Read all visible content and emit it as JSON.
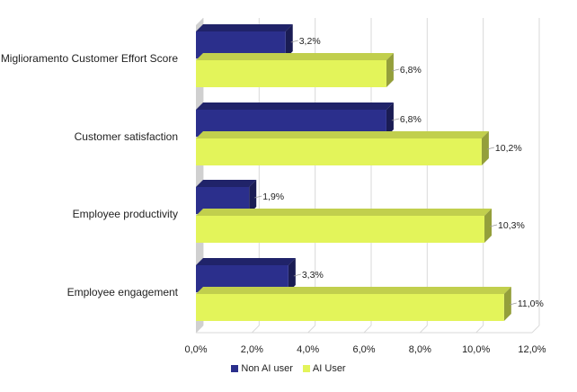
{
  "chart_data": {
    "type": "bar",
    "orientation": "horizontal",
    "categories": [
      "Miglioramento Customer Effort Score",
      "Customer satisfaction",
      "Employee productivity",
      "Employee engagement"
    ],
    "series": [
      {
        "name": "Non AI user",
        "values": [
          3.2,
          6.8,
          1.9,
          3.3
        ],
        "labels": [
          "3,2%",
          "6,8%",
          "1,9%",
          "3,3%"
        ],
        "color": "#2B2F8C"
      },
      {
        "name": "AI User",
        "values": [
          6.8,
          10.2,
          10.3,
          11.0
        ],
        "labels": [
          "6,8%",
          "10,2%",
          "10,3%",
          "11,0%"
        ],
        "color": "#E3F45A"
      }
    ],
    "xlim": [
      0,
      12
    ],
    "xticks": [
      0,
      2,
      4,
      6,
      8,
      10,
      12
    ],
    "xtick_labels": [
      "0,0%",
      "2,0%",
      "4,0%",
      "6,0%",
      "8,0%",
      "10,0%",
      "12,0%"
    ],
    "grid": true,
    "style": "3d",
    "legend_position": "bottom"
  }
}
